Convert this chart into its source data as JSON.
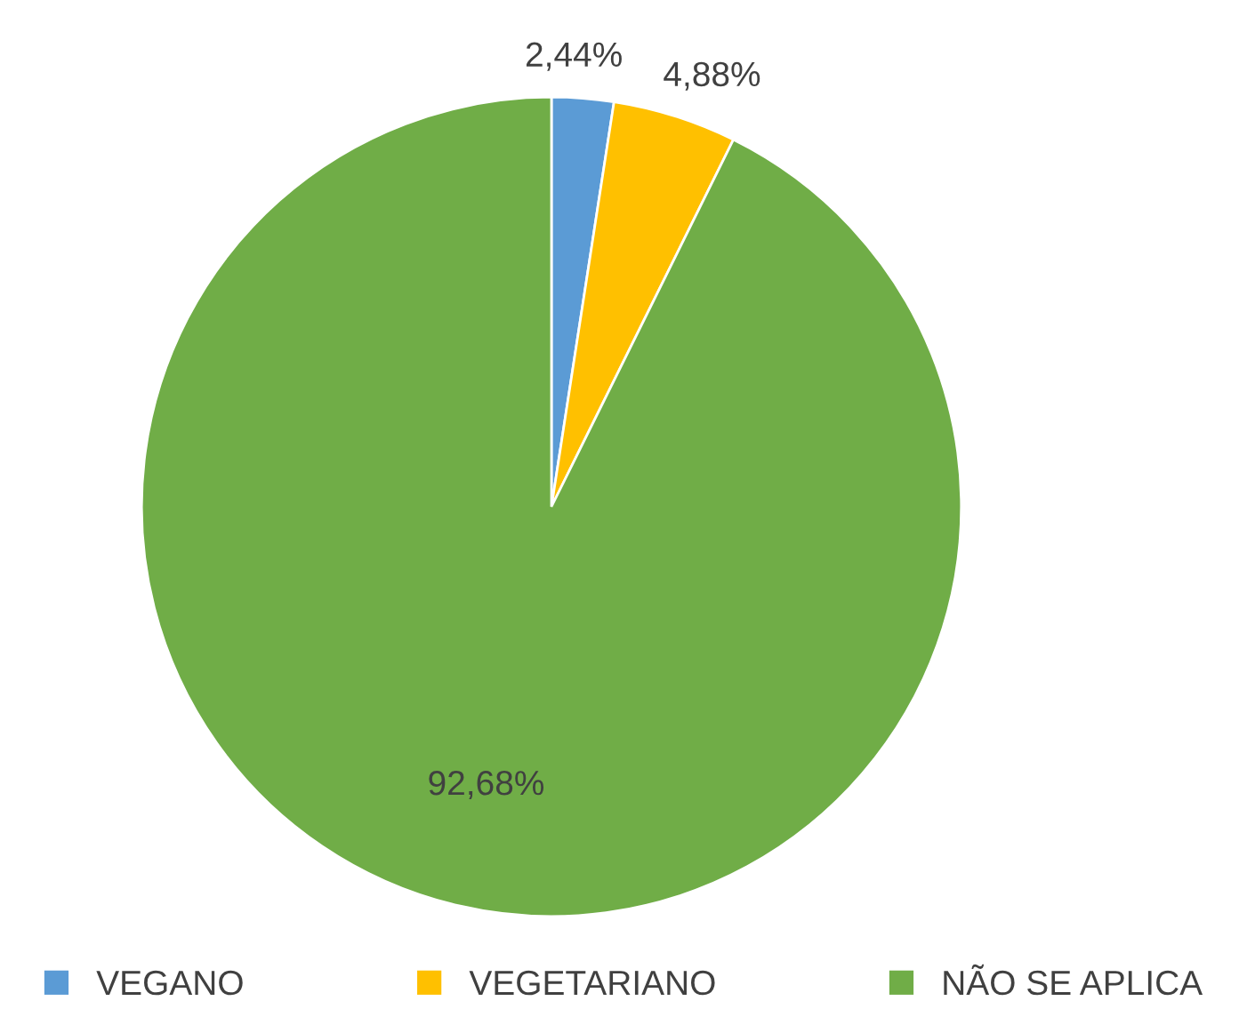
{
  "chart_data": {
    "type": "pie",
    "categories": [
      "VEGANO",
      "VEGETARIANO",
      "NÃO SE APLICA"
    ],
    "values": [
      2.44,
      4.88,
      92.68
    ],
    "value_labels": [
      "2,44%",
      "4,88%",
      "92,68%"
    ],
    "colors": [
      "#5b9bd5",
      "#ffc000",
      "#70ad47"
    ],
    "legend": "bottom"
  }
}
